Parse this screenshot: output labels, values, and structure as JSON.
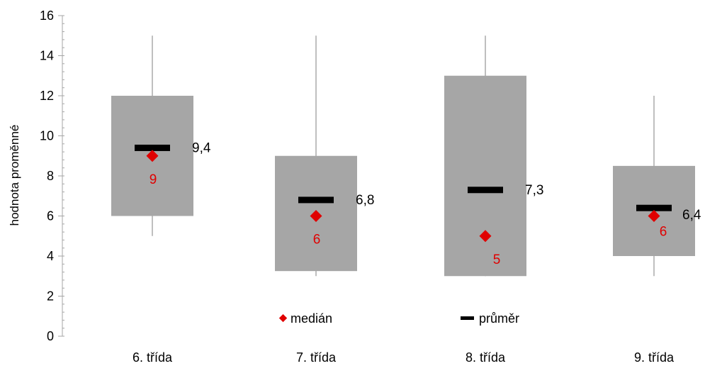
{
  "chart_data": {
    "type": "box",
    "ylabel": "hodnota proměnné",
    "ylim": [
      0,
      16
    ],
    "yticks": [
      "0",
      "2",
      "4",
      "6",
      "8",
      "10",
      "12",
      "14",
      "16"
    ],
    "categories": [
      "6. třída",
      "7. třída",
      "8. třída",
      "9. třída"
    ],
    "whisker_low": [
      5,
      3,
      3,
      3
    ],
    "q1": [
      6,
      3.25,
      3,
      4
    ],
    "q3": [
      12,
      9,
      13,
      8.5
    ],
    "whisker_high": [
      15,
      15,
      15,
      12
    ],
    "median": [
      9,
      6,
      5,
      6
    ],
    "median_labels": [
      "9",
      "6",
      "5",
      "6"
    ],
    "mean": [
      9.4,
      6.8,
      7.3,
      6.4
    ],
    "mean_labels": [
      "9,4",
      "6,8",
      "7,3",
      "6,4"
    ],
    "legend": {
      "median": "medián",
      "mean": "průměr"
    },
    "colors": {
      "box": "#a6a6a6",
      "whisker": "#bfbfbf",
      "median": "#e00000",
      "mean": "#000000",
      "axis": "#a6a6a6"
    }
  }
}
